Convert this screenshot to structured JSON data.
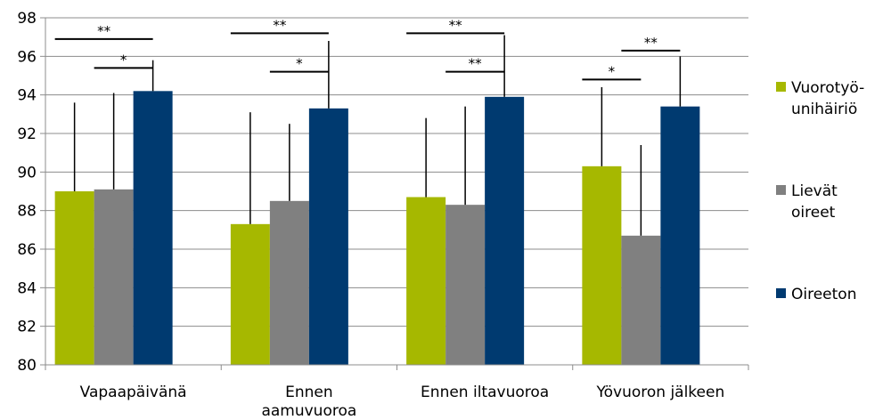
{
  "chart_data": {
    "type": "bar",
    "title": "",
    "xlabel": "",
    "ylabel": "",
    "ylim": [
      80,
      98
    ],
    "yticks": [
      80,
      82,
      84,
      86,
      88,
      90,
      92,
      94,
      96,
      98
    ],
    "grid": true,
    "legend_position": "right",
    "categories": [
      [
        "Vapaapäivänä"
      ],
      [
        "Ennen",
        "aamuvuoroa"
      ],
      [
        "Ennen iltavuoroa"
      ],
      [
        "Yövuoron jälkeen"
      ]
    ],
    "series": [
      {
        "name": [
          "Vuorotyö-",
          "unihäiriö"
        ],
        "color": "#a6b800",
        "values": [
          89.0,
          87.3,
          88.7,
          90.3
        ],
        "error_upper": [
          93.6,
          93.1,
          92.8,
          94.4
        ]
      },
      {
        "name": [
          "Lievät",
          "oireet"
        ],
        "color": "#808080",
        "values": [
          89.1,
          88.5,
          88.3,
          86.7
        ],
        "error_upper": [
          94.1,
          92.5,
          93.4,
          91.4
        ]
      },
      {
        "name": [
          "Oireeton"
        ],
        "color": "#003a70",
        "values": [
          94.2,
          93.3,
          93.9,
          93.4
        ],
        "error_upper": [
          95.8,
          96.8,
          97.1,
          96.0
        ]
      }
    ],
    "significance": [
      {
        "category": 0,
        "from": 0,
        "to": 2,
        "label": "**",
        "y": 96.9
      },
      {
        "category": 0,
        "from": 1,
        "to": 2,
        "label": "*",
        "y": 95.4
      },
      {
        "category": 1,
        "from": 0,
        "to": 2,
        "label": "**",
        "y": 97.2
      },
      {
        "category": 1,
        "from": 1,
        "to": 2,
        "label": "*",
        "y": 95.2
      },
      {
        "category": 2,
        "from": 0,
        "to": 2,
        "label": "**",
        "y": 97.2
      },
      {
        "category": 2,
        "from": 1,
        "to": 2,
        "label": "**",
        "y": 95.2
      },
      {
        "category": 3,
        "from": 0,
        "to": 1,
        "label": "*",
        "y": 94.8
      },
      {
        "category": 3,
        "from": 1,
        "to": 2,
        "label": "**",
        "y": 96.3
      }
    ]
  }
}
